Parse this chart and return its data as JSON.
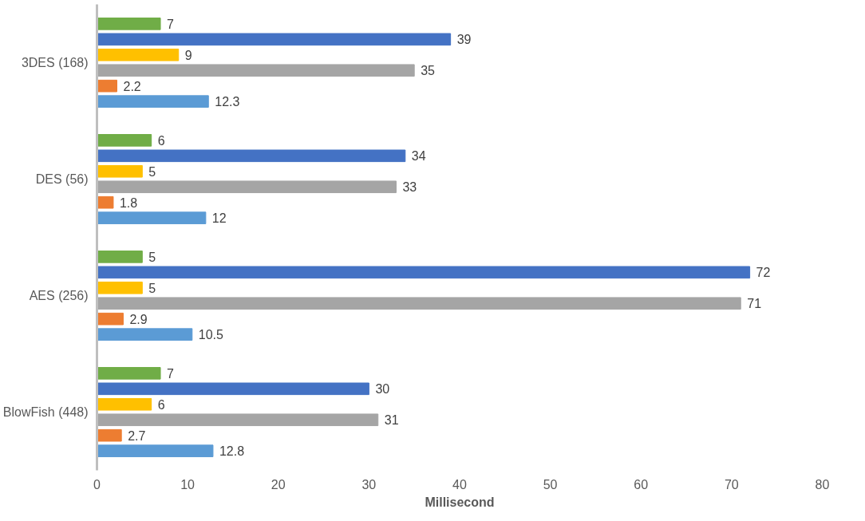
{
  "chart_data": {
    "type": "bar",
    "orientation": "horizontal",
    "xlabel": "Millisecond",
    "categories": [
      "3DES (168)",
      "DES (56)",
      "AES (256)",
      "BlowFish (448)"
    ],
    "series": [
      {
        "color": "#70ad47",
        "values": [
          7,
          6,
          5,
          7
        ]
      },
      {
        "color": "#4472c4",
        "values": [
          39,
          34,
          72,
          30
        ]
      },
      {
        "color": "#ffc000",
        "values": [
          9,
          5,
          5,
          6
        ]
      },
      {
        "color": "#a5a5a5",
        "values": [
          35,
          33,
          71,
          31
        ]
      },
      {
        "color": "#ed7d31",
        "values": [
          2.2,
          1.8,
          2.9,
          2.7
        ]
      },
      {
        "color": "#5b9bd5",
        "values": [
          12.3,
          12,
          10.5,
          12.8
        ]
      }
    ],
    "xlim": [
      0,
      80
    ],
    "xticks": [
      0,
      10,
      20,
      30,
      40,
      50,
      60,
      70,
      80
    ],
    "data_labels": true,
    "grid": false
  }
}
